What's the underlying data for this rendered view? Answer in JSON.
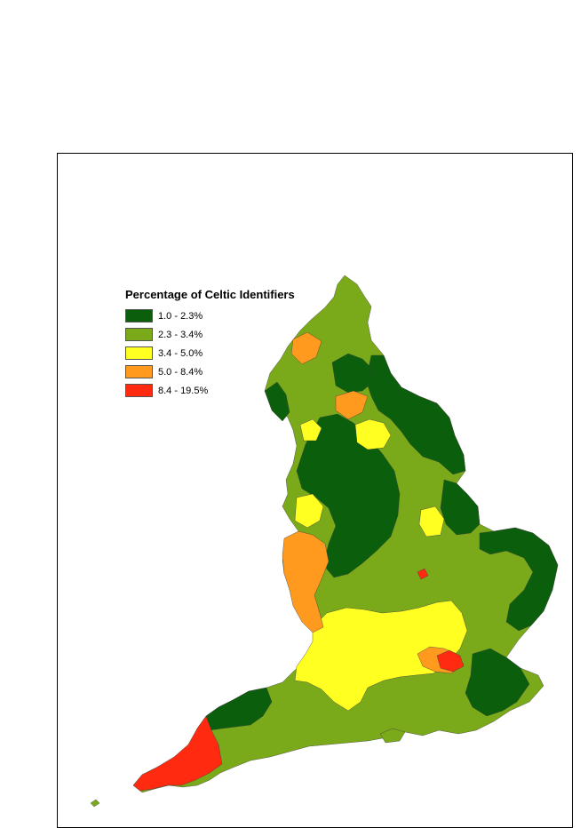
{
  "legend": {
    "title": "Percentage of Celtic Identifiers",
    "classes": [
      {
        "label": "1.0 - 2.3%",
        "color": "#0b5e0b"
      },
      {
        "label": "2.3 - 3.4%",
        "color": "#7aaa1a"
      },
      {
        "label": "3.4 - 5.0%",
        "color": "#ffff22"
      },
      {
        "label": "5.0 - 8.4%",
        "color": "#ff9a1e"
      },
      {
        "label": "8.4 - 19.5%",
        "color": "#ff2a10"
      }
    ]
  }
}
